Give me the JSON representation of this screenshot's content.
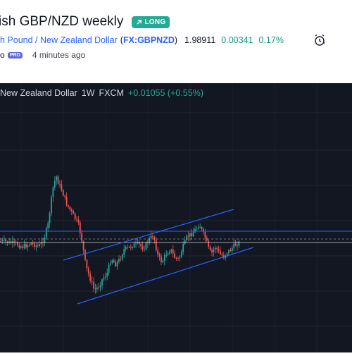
{
  "idea": {
    "title": "ish GBP/NZD weekly",
    "badge": "LONG",
    "badge_color": "#22ab94"
  },
  "symbol": {
    "name": "h Pound / New Zealand Dollar",
    "ticker_prefix": "(",
    "ticker": "FX:GBPNZD",
    "ticker_suffix": ")",
    "price": "1.98911",
    "change": "0.00341",
    "change_pct": "0.17%",
    "alarm_icon": "alarm-clock-icon"
  },
  "author": {
    "name": "o",
    "badge": "PRO",
    "time": "4 minutes ago"
  },
  "chart_legend": {
    "pair": "New Zealand Dollar",
    "interval": "1W",
    "source": "FXCM",
    "change": "+0.01055 (+0.55%)"
  },
  "chart_data": {
    "type": "candlestick",
    "timeframe": "1W",
    "up_color": "#26a69a",
    "down_color": "#ef5350",
    "line_color": "#2962ff",
    "background": "#131722"
  }
}
